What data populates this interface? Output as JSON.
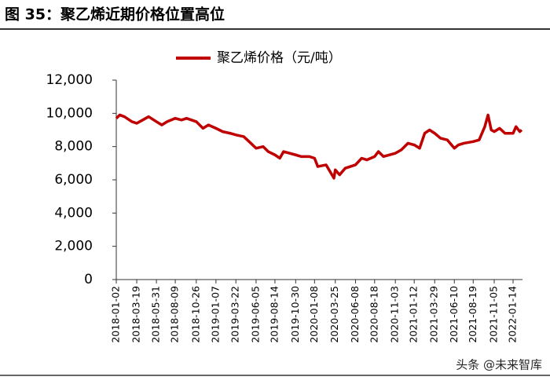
{
  "chart_data": {
    "type": "line",
    "title": "图 35：聚乙烯近期价格位置高位",
    "watermark": "头条 @未来智库",
    "series": [
      {
        "name": "聚乙烯价格（元/吨）",
        "color": "#c00000",
        "values": [
          9700,
          9900,
          9800,
          9500,
          9400,
          9600,
          9800,
          9500,
          9300,
          9500,
          9700,
          9600,
          9700,
          9500,
          9100,
          9300,
          9100,
          8900,
          8800,
          8700,
          8600,
          8300,
          7900,
          8000,
          7700,
          7500,
          7300,
          7700,
          7500,
          7400,
          7400,
          7300,
          6800,
          6900,
          6100,
          6600,
          6300,
          6700,
          6900,
          7300,
          7200,
          7400,
          7700,
          7400,
          7600,
          7800,
          8200,
          8100,
          7900,
          8800,
          9000,
          8800,
          8500,
          8400,
          7900,
          8100,
          8200,
          8300,
          8400,
          9200,
          9900,
          9000,
          8900,
          9100,
          8800,
          8800,
          9200,
          8900,
          9000
        ]
      }
    ],
    "x": [
      "2018-01-02",
      "2018-01-15",
      "2018-02-01",
      "2018-03-01",
      "2018-03-19",
      "2018-04-10",
      "2018-05-02",
      "2018-05-31",
      "2018-06-20",
      "2018-07-10",
      "2018-08-09",
      "2018-09-01",
      "2018-09-20",
      "2018-10-26",
      "2018-11-20",
      "2018-12-10",
      "2019-01-07",
      "2019-02-01",
      "2019-03-01",
      "2019-03-22",
      "2019-04-20",
      "2019-05-10",
      "2019-06-05",
      "2019-07-01",
      "2019-07-20",
      "2019-08-14",
      "2019-09-01",
      "2019-09-15",
      "2019-10-30",
      "2019-11-20",
      "2019-12-20",
      "2020-01-08",
      "2020-01-20",
      "2020-02-20",
      "2020-03-20",
      "2020-03-25",
      "2020-04-10",
      "2020-05-01",
      "2020-06-08",
      "2020-07-01",
      "2020-07-20",
      "2020-08-18",
      "2020-09-01",
      "2020-09-20",
      "2020-11-03",
      "2020-11-25",
      "2020-12-20",
      "2021-01-12",
      "2021-02-01",
      "2021-02-20",
      "2021-03-10",
      "2021-03-29",
      "2021-04-20",
      "2021-05-15",
      "2021-06-10",
      "2021-06-25",
      "2021-07-15",
      "2021-08-19",
      "2021-09-10",
      "2021-10-01",
      "2021-10-13",
      "2021-10-25",
      "2021-11-05",
      "2021-11-25",
      "2021-12-15",
      "2022-01-14",
      "2022-01-25",
      "2022-02-08",
      "2022-02-15"
    ],
    "xlim": [
      "2018-01-02",
      "2022-02-18"
    ],
    "xticks": [
      "2018-01-02",
      "2018-03-19",
      "2018-05-31",
      "2018-08-09",
      "2018-10-26",
      "2019-01-07",
      "2019-03-22",
      "2019-06-05",
      "2019-08-14",
      "2019-10-30",
      "2020-01-08",
      "2020-03-25",
      "2020-06-08",
      "2020-08-18",
      "2020-11-03",
      "2021-01-12",
      "2021-03-29",
      "2021-06-10",
      "2021-08-19",
      "2021-11-05",
      "2022-01-14"
    ],
    "ylim": [
      0,
      12000
    ],
    "yticks": [
      0,
      {
        "value": 2000,
        "label": "2,000"
      },
      {
        "value": 4000,
        "label": "4,000"
      },
      {
        "value": 6000,
        "label": "6,000"
      },
      {
        "value": 8000,
        "label": "8,000"
      },
      {
        "value": 10000,
        "label": "10,000"
      },
      {
        "value": 12000,
        "label": "12,000"
      }
    ],
    "legend": "top"
  }
}
